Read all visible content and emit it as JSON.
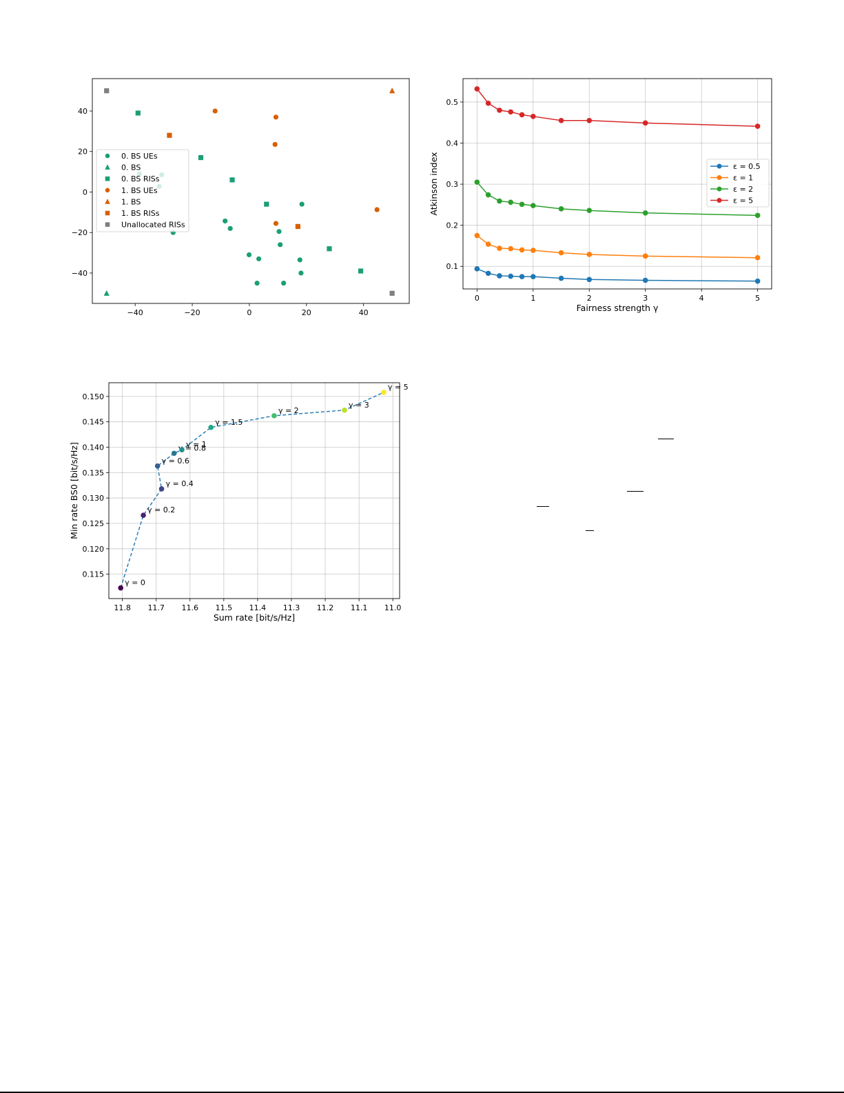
{
  "chart_data": [
    {
      "id": "scatter",
      "type": "scatter",
      "title": "",
      "xlabel": "",
      "ylabel": "",
      "xlim": [
        -55,
        56
      ],
      "ylim": [
        -55,
        56
      ],
      "xticks": [
        -40,
        -20,
        0,
        20,
        40
      ],
      "yticks": [
        -40,
        -20,
        0,
        20,
        40
      ],
      "grid": false,
      "legend_position": "center left",
      "series": [
        {
          "name": "0. BS UEs",
          "marker": "circle",
          "color": "#1b9e77",
          "points": [
            [
              -38.5,
              9
            ],
            [
              -30.7,
              8.5
            ],
            [
              -31.6,
              2.8
            ],
            [
              -26.7,
              -20
            ],
            [
              -8.5,
              -14.3
            ],
            [
              -6.7,
              -18
            ],
            [
              10.4,
              -19.5
            ],
            [
              10.8,
              -26
            ],
            [
              -0.1,
              -31
            ],
            [
              3.3,
              -33
            ],
            [
              17.7,
              -33.5
            ],
            [
              18.1,
              -40
            ],
            [
              2.7,
              -45
            ],
            [
              12,
              -45
            ],
            [
              18.4,
              -6
            ]
          ]
        },
        {
          "name": "0. BS",
          "marker": "triangle",
          "color": "#1b9e77",
          "points": [
            [
              -50,
              -50
            ]
          ]
        },
        {
          "name": "0. BS RISs",
          "marker": "square",
          "color": "#1b9e77",
          "points": [
            [
              -39,
              39
            ],
            [
              -17,
              17
            ],
            [
              -6,
              6
            ],
            [
              6,
              -6
            ],
            [
              28,
              -28
            ],
            [
              39,
              -39
            ]
          ]
        },
        {
          "name": "1. BS UEs",
          "marker": "circle",
          "color": "#d95f02",
          "points": [
            [
              -12,
              40
            ],
            [
              9.3,
              37
            ],
            [
              9,
              23.5
            ],
            [
              9.3,
              -15.5
            ],
            [
              44.7,
              -8.7
            ]
          ]
        },
        {
          "name": "1. BS",
          "marker": "triangle",
          "color": "#d95f02",
          "points": [
            [
              50,
              50
            ]
          ]
        },
        {
          "name": "1. BS RISs",
          "marker": "square",
          "color": "#d95f02",
          "points": [
            [
              -28,
              28
            ],
            [
              17,
              -17
            ]
          ]
        },
        {
          "name": "Unallocated RISs",
          "marker": "square",
          "color": "#7f7f7f",
          "points": [
            [
              -50,
              50
            ],
            [
              50,
              -50
            ]
          ]
        }
      ]
    },
    {
      "id": "atkinson",
      "type": "line",
      "title": "",
      "xlabel": "Fairness strength γ",
      "ylabel": "Atkinson index",
      "xlim": [
        -0.25,
        5.25
      ],
      "ylim": [
        0.045,
        0.557
      ],
      "xticks": [
        0,
        1,
        2,
        3,
        4,
        5
      ],
      "yticks": [
        0.1,
        0.2,
        0.3,
        0.4,
        0.5
      ],
      "grid": true,
      "legend_position": "center right",
      "x": [
        0,
        0.2,
        0.4,
        0.6,
        0.8,
        1,
        1.5,
        2,
        3,
        5
      ],
      "series": [
        {
          "name": "ε = 0.5",
          "color": "#1f77b4",
          "values": [
            0.094,
            0.083,
            0.077,
            0.076,
            0.075,
            0.075,
            0.071,
            0.068,
            0.066,
            0.064
          ]
        },
        {
          "name": "ε = 1",
          "color": "#ff7f0e",
          "values": [
            0.175,
            0.154,
            0.144,
            0.143,
            0.14,
            0.139,
            0.133,
            0.129,
            0.125,
            0.121
          ]
        },
        {
          "name": "ε = 2",
          "color": "#2ca02c",
          "values": [
            0.305,
            0.274,
            0.259,
            0.256,
            0.251,
            0.248,
            0.24,
            0.236,
            0.23,
            0.224
          ]
        },
        {
          "name": "ε = 5",
          "color": "#d62728",
          "values": [
            0.532,
            0.497,
            0.48,
            0.476,
            0.469,
            0.465,
            0.455,
            0.455,
            0.449,
            0.441
          ]
        }
      ]
    },
    {
      "id": "pareto",
      "type": "line",
      "title": "",
      "xlabel": "Sum rate [bit/s/Hz]",
      "ylabel": "Min rate BS0 [bit/s/Hz]",
      "xlim": [
        11.84,
        10.98
      ],
      "xinverted": true,
      "ylim": [
        0.1102,
        0.1527
      ],
      "xticks": [
        11.8,
        11.7,
        11.6,
        11.5,
        11.4,
        11.3,
        11.2,
        11.1,
        11.0
      ],
      "xticklabels": [
        "11.8",
        "11.7",
        "11.6",
        "11.5",
        "11.4",
        "11.3",
        "11.2",
        "11.1",
        "11.0"
      ],
      "yticks": [
        0.115,
        0.12,
        0.125,
        0.13,
        0.135,
        0.14,
        0.145,
        0.15
      ],
      "yticklabels": [
        "0.115",
        "0.120",
        "0.125",
        "0.130",
        "0.135",
        "0.140",
        "0.145",
        "0.150"
      ],
      "grid": true,
      "line_style": "dashed",
      "line_color": "#1f77b4",
      "colormap": "viridis",
      "points": [
        {
          "label": "γ = 0",
          "gamma": 0,
          "x": 11.805,
          "y": 0.1123,
          "color": "#440154"
        },
        {
          "label": "γ = 0.2",
          "gamma": 0.2,
          "x": 11.738,
          "y": 0.1266,
          "color": "#482475"
        },
        {
          "label": "γ = 0.4",
          "gamma": 0.4,
          "x": 11.684,
          "y": 0.1318,
          "color": "#414487"
        },
        {
          "label": "γ = 0.6",
          "gamma": 0.6,
          "x": 11.696,
          "y": 0.1363,
          "color": "#355f8d"
        },
        {
          "label": "γ = 0.8",
          "gamma": 0.8,
          "x": 11.647,
          "y": 0.1388,
          "color": "#2a788e"
        },
        {
          "label": "γ = 1",
          "gamma": 1,
          "x": 11.624,
          "y": 0.1395,
          "color": "#21918c"
        },
        {
          "label": "γ = 1.5",
          "gamma": 1.5,
          "x": 11.538,
          "y": 0.1439,
          "color": "#22a884"
        },
        {
          "label": "γ = 2",
          "gamma": 2,
          "x": 11.351,
          "y": 0.1462,
          "color": "#44bf70"
        },
        {
          "label": "γ = 3",
          "gamma": 3,
          "x": 11.143,
          "y": 0.1473,
          "color": "#bddf26"
        },
        {
          "label": "γ = 5",
          "gamma": 5,
          "x": 11.027,
          "y": 0.1508,
          "color": "#fde725"
        }
      ]
    }
  ]
}
